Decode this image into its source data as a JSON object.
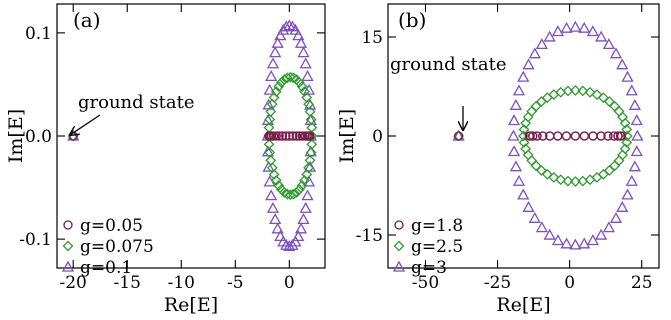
{
  "chart_data": [
    {
      "type": "scatter",
      "panel_label": "(a)",
      "xlabel": "Re[E]",
      "ylabel": "Im[E]",
      "xlim": [
        -21.5,
        3.3
      ],
      "ylim": [
        -0.128,
        0.128
      ],
      "xticks": [
        -20,
        -15,
        -10,
        -5,
        0
      ],
      "xtick_labels": [
        "-20",
        "-15",
        "-10",
        "-5",
        "0"
      ],
      "yticks": [
        -0.1,
        0.0,
        0.1
      ],
      "ytick_labels": [
        "-0.1",
        "0.0",
        "0.1"
      ],
      "legend_position": "bottom-left",
      "annotation": {
        "text": "ground state",
        "x": -20.0,
        "y": 0.0
      },
      "series": [
        {
          "name": "g=0.05",
          "marker": "circle",
          "color": "#7a1f4d",
          "ground": [
            -20.0,
            0.0
          ],
          "center": [
            0.0,
            0.0
          ],
          "rx": 1.9,
          "ry": 0.0,
          "n": 36
        },
        {
          "name": "g=0.075",
          "marker": "diamond",
          "color": "#2e9b2e",
          "ground": [
            -20.0,
            0.0
          ],
          "center": [
            0.1,
            0.0
          ],
          "rx": 2.0,
          "ry": 0.057,
          "n": 44
        },
        {
          "name": "g=0.1",
          "marker": "triangle",
          "color": "#7f4fbf",
          "ground": [
            -20.0,
            0.0
          ],
          "center": [
            0.0,
            0.0
          ],
          "rx": 2.0,
          "ry": 0.107,
          "n": 44
        }
      ]
    },
    {
      "type": "scatter",
      "panel_label": "(b)",
      "xlabel": "Re[E]",
      "ylabel": "Im[E]",
      "xlim": [
        -63,
        31
      ],
      "ylim": [
        -20,
        20
      ],
      "xticks": [
        -50,
        -25,
        0,
        25
      ],
      "xtick_labels": [
        "-50",
        "-25",
        "0",
        "25"
      ],
      "yticks": [
        -15,
        0,
        15
      ],
      "ytick_labels": [
        "-15",
        "0",
        "15"
      ],
      "legend_position": "bottom-left",
      "annotation": {
        "text": "ground state",
        "x": -38.5,
        "y": 0.0
      },
      "series": [
        {
          "name": "g=1.8",
          "marker": "circle",
          "color": "#7a1f4d",
          "ground": [
            -38.5,
            0.0
          ],
          "center": [
            2.0,
            0.0
          ],
          "rx": 16.0,
          "ry": 0.0,
          "n": 32
        },
        {
          "name": "g=2.5",
          "marker": "diamond",
          "color": "#2e9b2e",
          "ground": [
            -38.5,
            0.0
          ],
          "center": [
            2.0,
            0.0
          ],
          "rx": 18.0,
          "ry": 6.9,
          "n": 44
        },
        {
          "name": "g=3",
          "marker": "triangle",
          "color": "#7f4fbf",
          "ground": [
            -38.5,
            0.0
          ],
          "center": [
            2.0,
            0.0
          ],
          "rx": 21.5,
          "ry": 16.5,
          "n": 44
        }
      ]
    }
  ]
}
